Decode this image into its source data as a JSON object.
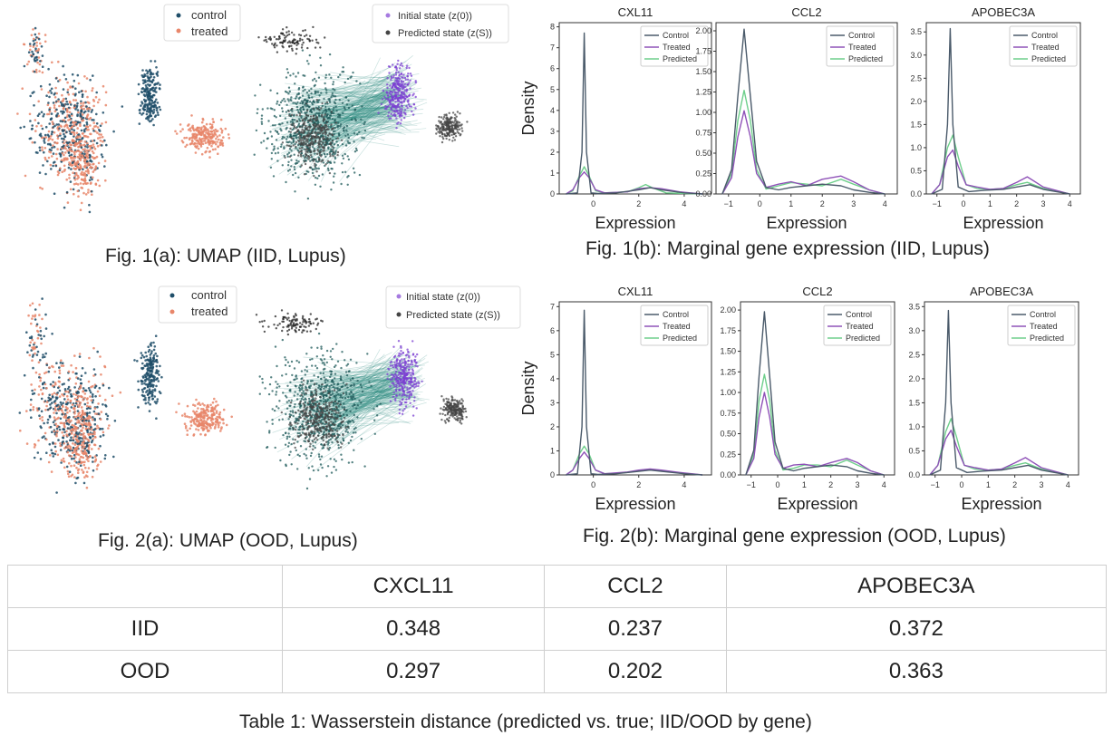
{
  "colors": {
    "control": "#1f4e69",
    "treated": "#e8866a",
    "initial_state": "#a67ae0",
    "predicted_state": "#444444",
    "edge": "#2a8a80",
    "kde_control": "#4a5a6a",
    "kde_treated": "#8f52b8",
    "kde_predicted": "#6fcf8c"
  },
  "fig1a": {
    "caption": "Fig. 1(a): UMAP (IID, Lupus)",
    "legend_left": [
      "control",
      "treated"
    ],
    "legend_right": [
      "Initial state (z(0))",
      "Predicted state (z(S))"
    ]
  },
  "fig2a": {
    "caption": "Fig. 2(a): UMAP (OOD, Lupus)",
    "legend_left": [
      "control",
      "treated"
    ],
    "legend_right": [
      "Initial state (z(0))",
      "Predicted state (z(S))"
    ]
  },
  "fig1b": {
    "caption": "Fig. 1(b): Marginal gene expression (IID, Lupus)"
  },
  "fig2b": {
    "caption": "Fig. 2(b): Marginal gene expression (OOD, Lupus)"
  },
  "chart_data": [
    {
      "id": "fig1b-cxl11",
      "type": "line",
      "title": "CXL11",
      "xlabel": "Expression",
      "ylabel": "Density",
      "xlim": [
        -1.5,
        5.2
      ],
      "ylim": [
        0,
        8.2
      ],
      "xticks": [
        0,
        2,
        4
      ],
      "yticks": [
        0,
        1,
        2,
        3,
        4,
        5,
        6,
        7,
        8
      ],
      "legend": [
        "Control",
        "Treated",
        "Predicted"
      ],
      "series": [
        {
          "name": "Control",
          "x": [
            -1.2,
            -0.7,
            -0.5,
            -0.4,
            -0.3,
            -0.1,
            0.2,
            1.0,
            2.0,
            2.5,
            3.0,
            4.0,
            4.8
          ],
          "y": [
            0,
            0.05,
            2.0,
            7.7,
            2.0,
            0.05,
            0.02,
            0.05,
            0.2,
            0.3,
            0.2,
            0.05,
            0
          ]
        },
        {
          "name": "Treated",
          "x": [
            -1.2,
            -0.9,
            -0.6,
            -0.4,
            -0.2,
            0.1,
            0.5,
            1.5,
            2.0,
            2.5,
            3.0,
            3.8,
            4.8
          ],
          "y": [
            0,
            0.2,
            0.8,
            1.05,
            0.8,
            0.2,
            0.05,
            0.1,
            0.25,
            0.3,
            0.25,
            0.1,
            0
          ]
        },
        {
          "name": "Predicted",
          "x": [
            -1.2,
            -0.9,
            -0.6,
            -0.4,
            -0.2,
            0.1,
            0.5,
            1.5,
            2.0,
            2.3,
            2.6,
            3.2,
            4.8
          ],
          "y": [
            0,
            0.15,
            0.9,
            1.3,
            0.9,
            0.15,
            0.05,
            0.1,
            0.3,
            0.45,
            0.3,
            0.05,
            0
          ]
        }
      ]
    },
    {
      "id": "fig1b-ccl2",
      "type": "line",
      "title": "CCL2",
      "xlabel": "Expression",
      "ylabel": "",
      "xlim": [
        -1.4,
        4.4
      ],
      "ylim": [
        0,
        2.1
      ],
      "xticks": [
        -1,
        0,
        1,
        2,
        3,
        4
      ],
      "yticks": [
        0,
        0.25,
        0.5,
        0.75,
        1.0,
        1.25,
        1.5,
        1.75,
        2.0
      ],
      "legend": [
        "Control",
        "Treated",
        "Predicted"
      ],
      "series": [
        {
          "name": "Control",
          "x": [
            -1.2,
            -0.9,
            -0.7,
            -0.5,
            -0.3,
            -0.1,
            0.2,
            0.6,
            1.0,
            1.5,
            2.0,
            2.6,
            3.0,
            3.5,
            4.0
          ],
          "y": [
            0,
            0.3,
            1.2,
            2.02,
            1.2,
            0.4,
            0.08,
            0.05,
            0.08,
            0.1,
            0.12,
            0.1,
            0.05,
            0.02,
            0
          ]
        },
        {
          "name": "Treated",
          "x": [
            -1.2,
            -0.9,
            -0.7,
            -0.5,
            -0.3,
            -0.1,
            0.2,
            0.6,
            1.0,
            1.5,
            2.0,
            2.6,
            3.0,
            3.5,
            4.0
          ],
          "y": [
            0,
            0.2,
            0.7,
            1.02,
            0.7,
            0.25,
            0.08,
            0.12,
            0.15,
            0.1,
            0.18,
            0.22,
            0.15,
            0.05,
            0
          ]
        },
        {
          "name": "Predicted",
          "x": [
            -1.2,
            -0.9,
            -0.7,
            -0.5,
            -0.3,
            -0.1,
            0.2,
            0.6,
            1.0,
            1.5,
            2.0,
            2.6,
            3.0,
            3.5,
            4.0
          ],
          "y": [
            0,
            0.25,
            0.9,
            1.27,
            0.9,
            0.3,
            0.06,
            0.1,
            0.14,
            0.12,
            0.1,
            0.18,
            0.12,
            0.05,
            0
          ]
        }
      ]
    },
    {
      "id": "fig1b-apobec3a",
      "type": "line",
      "title": "APOBEC3A",
      "xlabel": "Expression",
      "ylabel": "",
      "xlim": [
        -1.4,
        4.4
      ],
      "ylim": [
        0,
        3.7
      ],
      "xticks": [
        -1,
        0,
        1,
        2,
        3,
        4
      ],
      "yticks": [
        0,
        0.5,
        1.0,
        1.5,
        2.0,
        2.5,
        3.0,
        3.5
      ],
      "legend": [
        "Control",
        "Treated",
        "Predicted"
      ],
      "series": [
        {
          "name": "Control",
          "x": [
            -1.2,
            -0.8,
            -0.6,
            -0.5,
            -0.4,
            -0.2,
            0.2,
            0.8,
            1.5,
            2.0,
            2.5,
            3.0,
            4.0
          ],
          "y": [
            0,
            0.1,
            1.5,
            3.57,
            1.5,
            0.15,
            0.05,
            0.08,
            0.1,
            0.15,
            0.2,
            0.1,
            0
          ]
        },
        {
          "name": "Treated",
          "x": [
            -1.2,
            -0.9,
            -0.6,
            -0.4,
            -0.2,
            0.1,
            0.5,
            1.0,
            1.5,
            2.0,
            2.4,
            3.0,
            4.0
          ],
          "y": [
            0,
            0.2,
            0.8,
            0.95,
            0.6,
            0.2,
            0.15,
            0.1,
            0.12,
            0.25,
            0.37,
            0.15,
            0
          ]
        },
        {
          "name": "Predicted",
          "x": [
            -1.2,
            -0.9,
            -0.6,
            -0.4,
            -0.2,
            0.1,
            0.5,
            1.0,
            1.5,
            2.0,
            2.4,
            3.0,
            4.0
          ],
          "y": [
            0,
            0.2,
            1.0,
            1.27,
            0.8,
            0.2,
            0.12,
            0.1,
            0.12,
            0.2,
            0.25,
            0.12,
            0
          ]
        }
      ]
    },
    {
      "id": "fig2b-cxl11",
      "type": "line",
      "title": "CXL11",
      "xlabel": "Expression",
      "ylabel": "Density",
      "xlim": [
        -1.5,
        5.2
      ],
      "ylim": [
        0,
        7.2
      ],
      "xticks": [
        0,
        2,
        4
      ],
      "yticks": [
        0,
        1,
        2,
        3,
        4,
        5,
        6,
        7
      ],
      "legend": [
        "Control",
        "Treated",
        "Predicted"
      ],
      "series": [
        {
          "name": "Control",
          "x": [
            -1.2,
            -0.7,
            -0.5,
            -0.4,
            -0.3,
            -0.1,
            0.2,
            1.0,
            2.0,
            2.5,
            3.0,
            4.0,
            4.8
          ],
          "y": [
            0,
            0.05,
            2.0,
            6.85,
            2.0,
            0.05,
            0.02,
            0.05,
            0.15,
            0.2,
            0.15,
            0.05,
            0
          ]
        },
        {
          "name": "Treated",
          "x": [
            -1.2,
            -0.9,
            -0.6,
            -0.4,
            -0.2,
            0.1,
            0.5,
            1.5,
            2.0,
            2.5,
            3.0,
            3.8,
            4.8
          ],
          "y": [
            0,
            0.2,
            0.7,
            0.95,
            0.7,
            0.2,
            0.05,
            0.12,
            0.2,
            0.25,
            0.2,
            0.1,
            0
          ]
        },
        {
          "name": "Predicted",
          "x": [
            -1.2,
            -0.9,
            -0.6,
            -0.4,
            -0.2,
            0.1,
            0.5,
            1.5,
            2.0,
            2.5,
            3.0,
            3.8,
            4.8
          ],
          "y": [
            0,
            0.2,
            0.9,
            1.2,
            0.9,
            0.2,
            0.05,
            0.1,
            0.18,
            0.22,
            0.18,
            0.08,
            0
          ]
        }
      ]
    },
    {
      "id": "fig2b-ccl2",
      "type": "line",
      "title": "CCL2",
      "xlabel": "Expression",
      "ylabel": "",
      "xlim": [
        -1.4,
        4.4
      ],
      "ylim": [
        0,
        2.1
      ],
      "xticks": [
        -1,
        0,
        1,
        2,
        3,
        4
      ],
      "yticks": [
        0,
        0.25,
        0.5,
        0.75,
        1.0,
        1.25,
        1.5,
        1.75,
        2.0
      ],
      "legend": [
        "Control",
        "Treated",
        "Predicted"
      ],
      "series": [
        {
          "name": "Control",
          "x": [
            -1.2,
            -0.9,
            -0.7,
            -0.5,
            -0.3,
            -0.1,
            0.2,
            0.6,
            1.0,
            1.5,
            2.0,
            2.6,
            3.0,
            3.5,
            4.0
          ],
          "y": [
            0,
            0.3,
            1.2,
            1.98,
            1.2,
            0.4,
            0.08,
            0.05,
            0.08,
            0.1,
            0.12,
            0.1,
            0.05,
            0.02,
            0
          ]
        },
        {
          "name": "Treated",
          "x": [
            -1.2,
            -0.9,
            -0.7,
            -0.5,
            -0.3,
            -0.1,
            0.2,
            0.6,
            1.0,
            1.5,
            2.0,
            2.6,
            3.0,
            3.5,
            4.0
          ],
          "y": [
            0,
            0.2,
            0.7,
            1.0,
            0.7,
            0.25,
            0.08,
            0.12,
            0.13,
            0.1,
            0.15,
            0.2,
            0.15,
            0.05,
            0
          ]
        },
        {
          "name": "Predicted",
          "x": [
            -1.2,
            -0.9,
            -0.7,
            -0.5,
            -0.3,
            -0.1,
            0.2,
            0.6,
            1.0,
            1.5,
            2.0,
            2.6,
            3.0,
            3.5,
            4.0
          ],
          "y": [
            0,
            0.25,
            0.9,
            1.22,
            0.9,
            0.3,
            0.06,
            0.08,
            0.12,
            0.12,
            0.1,
            0.18,
            0.12,
            0.05,
            0
          ]
        }
      ]
    },
    {
      "id": "fig2b-apobec3a",
      "type": "line",
      "title": "APOBEC3A",
      "xlabel": "Expression",
      "ylabel": "",
      "xlim": [
        -1.4,
        4.4
      ],
      "ylim": [
        0,
        3.6
      ],
      "xticks": [
        -1,
        0,
        1,
        2,
        3,
        4
      ],
      "yticks": [
        0,
        0.5,
        1.0,
        1.5,
        2.0,
        2.5,
        3.0,
        3.5
      ],
      "legend": [
        "Control",
        "Treated",
        "Predicted"
      ],
      "series": [
        {
          "name": "Control",
          "x": [
            -1.2,
            -0.8,
            -0.6,
            -0.5,
            -0.4,
            -0.2,
            0.2,
            0.8,
            1.5,
            2.0,
            2.5,
            3.0,
            4.0
          ],
          "y": [
            0,
            0.1,
            1.5,
            3.42,
            1.5,
            0.15,
            0.05,
            0.08,
            0.1,
            0.15,
            0.2,
            0.1,
            0
          ]
        },
        {
          "name": "Treated",
          "x": [
            -1.2,
            -0.9,
            -0.6,
            -0.4,
            -0.2,
            0.1,
            0.5,
            1.0,
            1.5,
            2.0,
            2.4,
            3.0,
            4.0
          ],
          "y": [
            0,
            0.2,
            0.75,
            0.93,
            0.6,
            0.2,
            0.15,
            0.1,
            0.12,
            0.25,
            0.36,
            0.15,
            0
          ]
        },
        {
          "name": "Predicted",
          "x": [
            -1.2,
            -0.9,
            -0.6,
            -0.4,
            -0.2,
            0.1,
            0.5,
            1.0,
            1.5,
            2.0,
            2.4,
            3.0,
            4.0
          ],
          "y": [
            0,
            0.2,
            0.9,
            1.17,
            0.8,
            0.2,
            0.12,
            0.1,
            0.12,
            0.2,
            0.25,
            0.12,
            0
          ]
        }
      ]
    },
    {
      "id": "table1",
      "type": "table",
      "columns": [
        "",
        "CXCL11",
        "CCL2",
        "APOBEC3A"
      ],
      "rows": [
        {
          "label": "IID",
          "values": [
            "0.348",
            "0.237",
            "0.372"
          ]
        },
        {
          "label": "OOD",
          "values": [
            "0.297",
            "0.202",
            "0.363"
          ]
        }
      ]
    }
  ],
  "table": {
    "header": [
      "",
      "CXCL11",
      "CCL2",
      "APOBEC3A"
    ],
    "rows": [
      {
        "label": "IID",
        "values": [
          "0.348",
          "0.237",
          "0.372"
        ]
      },
      {
        "label": "OOD",
        "values": [
          "0.297",
          "0.202",
          "0.363"
        ]
      }
    ],
    "caption": "Table 1: Wasserstein distance (predicted vs. true; IID/OOD by gene)"
  }
}
